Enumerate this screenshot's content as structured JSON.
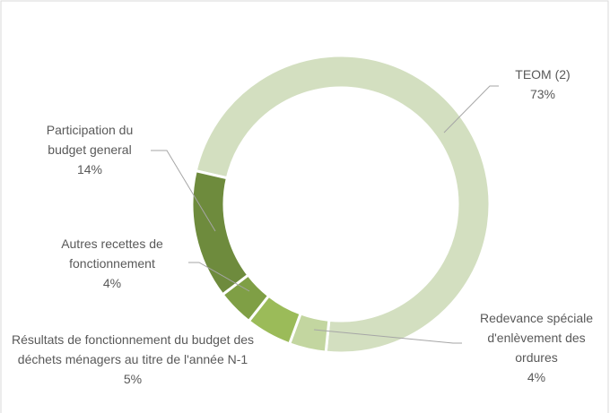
{
  "chart_data": {
    "type": "donut",
    "categories": [
      "TEOM (2)",
      "Redevance spéciale d'enlèvement des ordures",
      "Résultats de fonctionnement du budget des déchets ménagers au titre de l'année N-1",
      "Autres recettes de fonctionnement",
      "Participation du budget general"
    ],
    "values": [
      73,
      4,
      5,
      4,
      14
    ],
    "value_labels": [
      "73%",
      "4%",
      "5%",
      "4%",
      "14%"
    ],
    "colors": [
      "#d3dfc0",
      "#c3d6a0",
      "#9bbb59",
      "#7f9f45",
      "#6e8b3d"
    ]
  }
}
